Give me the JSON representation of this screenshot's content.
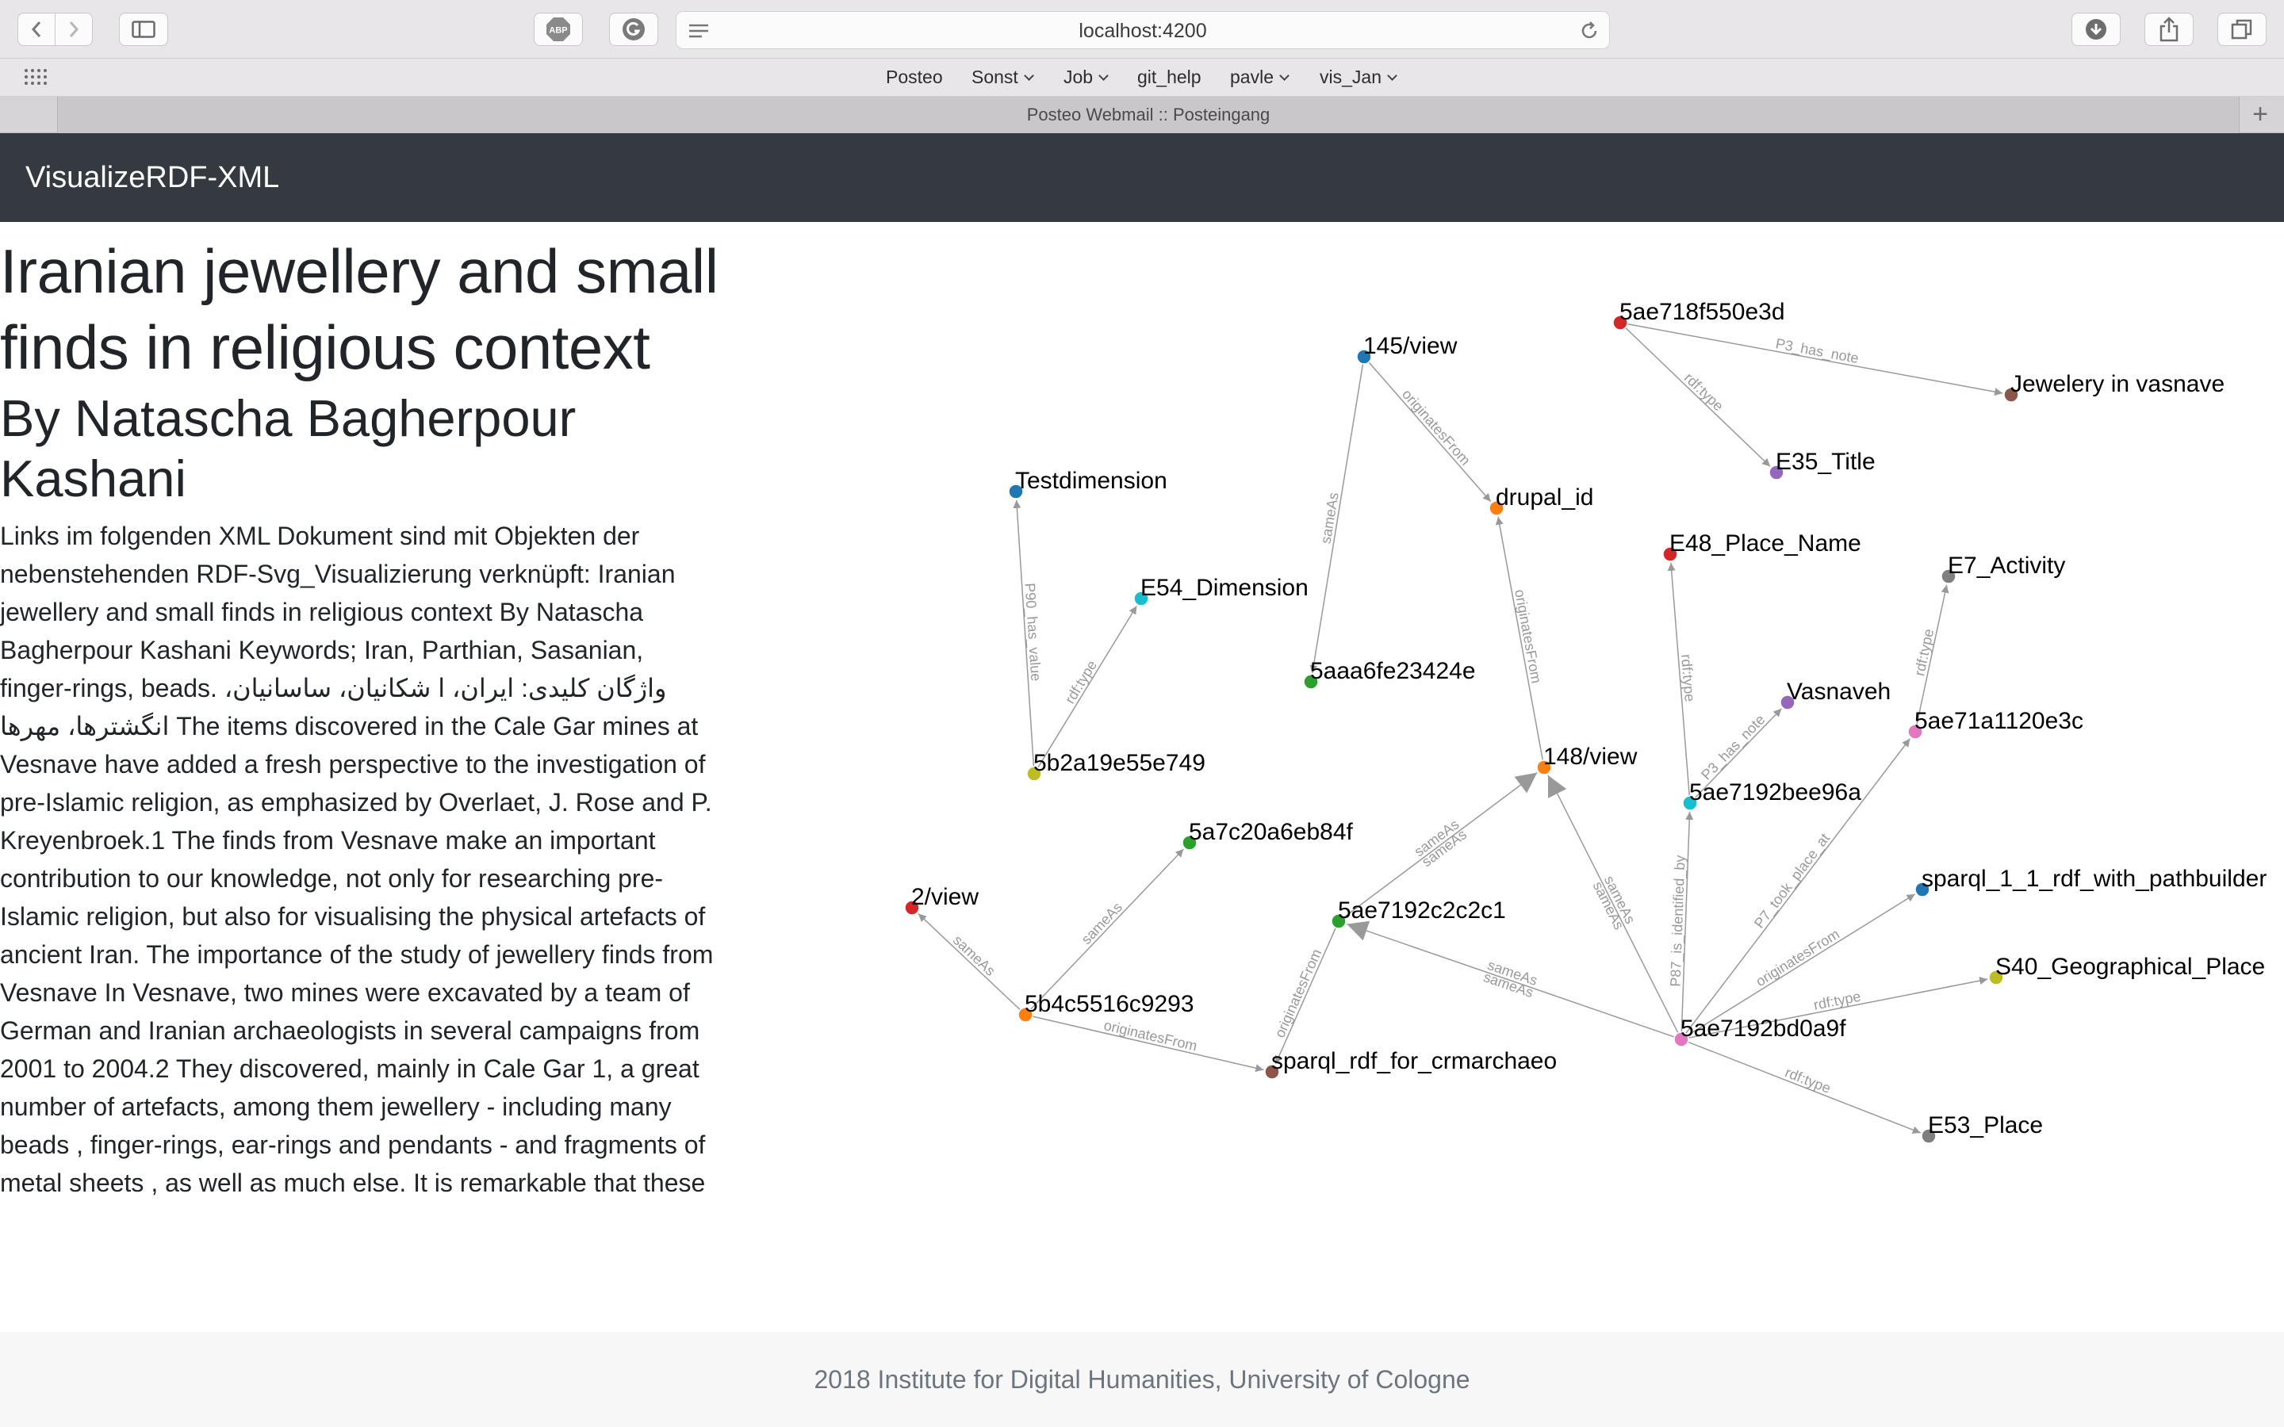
{
  "browser": {
    "url": "localhost:4200",
    "bookmarks": [
      {
        "label": "Posteo",
        "menu": false
      },
      {
        "label": "Sonst",
        "menu": true
      },
      {
        "label": "Job",
        "menu": true
      },
      {
        "label": "git_help",
        "menu": false
      },
      {
        "label": "pavle",
        "menu": true
      },
      {
        "label": "vis_Jan",
        "menu": true
      }
    ],
    "tab_title": "Posteo Webmail :: Posteingang",
    "adblock_label": "ABP",
    "new_tab_label": "+"
  },
  "app": {
    "brand": "VisualizeRDF-XML"
  },
  "article": {
    "title": "Iranian jewellery and small finds in religious context",
    "author": "By Natascha Bagherpour Kashani",
    "body": "Links im folgenden XML Dokument sind mit Objekten der nebenstehenden RDF-Svg_Visualizierung verknüpft: Iranian jewellery and small finds in religious context By Natascha Bagherpour Kashani Keywords; Iran, Parthian, Sasanian, finger-rings, beads. واژگان کلیدی: ایران، ا شکانیان، ساسانیان، انگشترها، مهرها The items discovered in the Cale Gar mines at Vesnave have added a fresh perspective to the investigation of pre-Islamic religion, as emphasized by Overlaet, J. Rose and P. Kreyenbroek.1 The finds from Vesnave make an important contribution to our knowledge, not only for researching pre-Islamic religion, but also for visualising the physical artefacts of ancient Iran. The importance of the study of jewellery finds from Vesnave In Vesnave, two mines were excavated by a team of German and Iranian archaeologists in several campaigns from 2001 to 2004.2 They discovered, mainly in Cale Gar 1, a great number of artefacts, among them jewellery - including many beads , finger-rings, ear-rings and pendants - and fragments of metal sheets , as well as much else. It is remarkable that these"
  },
  "graph": {
    "nodes": [
      {
        "id": "n145",
        "label": "145/view",
        "color": "#1f77b4"
      },
      {
        "id": "nTitle5ae718",
        "label": "5ae718f550e3d",
        "color": "#d62728"
      },
      {
        "id": "nJewelery",
        "label": "Jewelery in vasnave",
        "color": "#8c564b"
      },
      {
        "id": "nE35",
        "label": "E35_Title",
        "color": "#9467bd"
      },
      {
        "id": "nDrupal",
        "label": "drupal_id",
        "color": "#ff7f0e"
      },
      {
        "id": "nTestdim",
        "label": "Testdimension",
        "color": "#1f77b4"
      },
      {
        "id": "nE54",
        "label": "E54_Dimension",
        "color": "#17becf"
      },
      {
        "id": "nE48",
        "label": "E48_Place_Name",
        "color": "#d62728"
      },
      {
        "id": "nE7",
        "label": "E7_Activity",
        "color": "#7f7f7f"
      },
      {
        "id": "n5aaa",
        "label": "5aaa6fe23424e",
        "color": "#2ca02c"
      },
      {
        "id": "nVasnaveh",
        "label": "Vasnaveh",
        "color": "#9467bd"
      },
      {
        "id": "n5ae71a",
        "label": "5ae71a1120e3c",
        "color": "#e377c2"
      },
      {
        "id": "n5b2a",
        "label": "5b2a19e55e749",
        "color": "#bcbd22"
      },
      {
        "id": "n148",
        "label": "148/view",
        "color": "#ff7f0e"
      },
      {
        "id": "n5ae7192b",
        "label": "5ae7192bee96a",
        "color": "#17becf"
      },
      {
        "id": "n5a7c",
        "label": "5a7c20a6eb84f",
        "color": "#2ca02c"
      },
      {
        "id": "nSparql11",
        "label": "sparql_1_1_rdf_with_pathbuilder",
        "color": "#1f77b4"
      },
      {
        "id": "n2view",
        "label": "2/view",
        "color": "#d62728"
      },
      {
        "id": "n5ae7192c",
        "label": "5ae7192c2c2c1",
        "color": "#2ca02c"
      },
      {
        "id": "nS40",
        "label": "S40_Geographical_Place",
        "color": "#bcbd22"
      },
      {
        "id": "n5b4c",
        "label": "5b4c5516c9293",
        "color": "#ff7f0e"
      },
      {
        "id": "n5ae7192bd",
        "label": "5ae7192bd0a9f",
        "color": "#e377c2"
      },
      {
        "id": "nSparqlRdf",
        "label": "sparql_rdf_for_crmarchaeo",
        "color": "#8c564b"
      },
      {
        "id": "nE53",
        "label": "E53_Place",
        "color": "#7f7f7f"
      }
    ],
    "edges": [
      {
        "source": "nTitle5ae718",
        "target": "nJewelery",
        "labels": [
          "P3_has_note"
        ]
      },
      {
        "source": "nTitle5ae718",
        "target": "nE35",
        "labels": [
          "rdf:type"
        ]
      },
      {
        "source": "n145",
        "target": "nDrupal",
        "labels": [
          "originatesFrom"
        ]
      },
      {
        "source": "n145",
        "target": "n5aaa",
        "labels": [
          "sameAs"
        ]
      },
      {
        "source": "n5b2a",
        "target": "nTestdim",
        "labels": [
          "P90_has_value"
        ]
      },
      {
        "source": "n5b2a",
        "target": "nE54",
        "labels": [
          "rdf:type"
        ]
      },
      {
        "source": "n148",
        "target": "nDrupal",
        "labels": [
          "originatesFrom"
        ]
      },
      {
        "source": "n5ae7192b",
        "target": "nE48",
        "labels": [
          "rdf:type"
        ]
      },
      {
        "source": "n5ae7192b",
        "target": "nVasnaveh",
        "labels": [
          "P3_has_note"
        ]
      },
      {
        "source": "n5ae71a",
        "target": "nE7",
        "labels": [
          "rdf:type"
        ]
      },
      {
        "source": "n5ae7192c",
        "target": "n148",
        "labels": [
          "sameAs",
          "sameAs"
        ]
      },
      {
        "source": "n5b4c",
        "target": "n5a7c",
        "labels": [
          "sameAs"
        ]
      },
      {
        "source": "n5b4c",
        "target": "n2view",
        "labels": [
          "sameAs"
        ]
      },
      {
        "source": "n5b4c",
        "target": "nSparqlRdf",
        "labels": [
          "originatesFrom"
        ]
      },
      {
        "source": "n5ae7192c",
        "target": "nSparqlRdf",
        "labels": [
          "originatesFrom"
        ]
      },
      {
        "source": "n5ae7192bd",
        "target": "n5ae7192c",
        "labels": [
          "sameAs",
          "sameAs"
        ]
      },
      {
        "source": "n5ae7192bd",
        "target": "n148",
        "labels": [
          "sameAs",
          "sameAs"
        ]
      },
      {
        "source": "n5ae7192bd",
        "target": "n5ae7192b",
        "labels": [
          "P87_is_identified_by"
        ]
      },
      {
        "source": "n5ae7192bd",
        "target": "n5ae71a",
        "labels": [
          "P7_took_place_at"
        ]
      },
      {
        "source": "n5ae7192bd",
        "target": "nSparql11",
        "labels": [
          "originatesFrom"
        ]
      },
      {
        "source": "n5ae7192bd",
        "target": "nS40",
        "labels": [
          "rdf:type"
        ]
      },
      {
        "source": "n5ae7192bd",
        "target": "nE53",
        "labels": [
          "rdf:type"
        ]
      }
    ]
  },
  "footer": {
    "text": "2018 Institute for Digital Humanities, University of Cologne"
  }
}
